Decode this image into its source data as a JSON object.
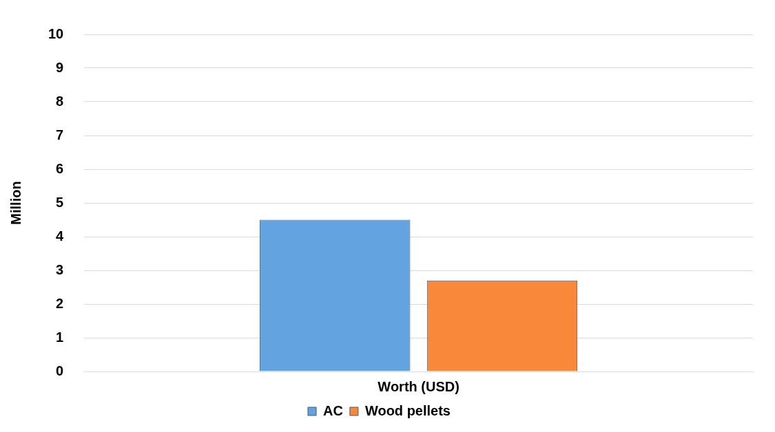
{
  "chart_data": {
    "type": "bar",
    "ylabel": "Million",
    "categories": [
      "Worth (USD)"
    ],
    "series": [
      {
        "name": "AC",
        "color": "#63a3e0",
        "values": [
          4.5
        ]
      },
      {
        "name": "Wood pellets",
        "color": "#f9883a",
        "values": [
          2.7
        ]
      }
    ],
    "ylim": [
      0,
      10
    ],
    "yticks": [
      0,
      1,
      2,
      3,
      4,
      5,
      6,
      7,
      8,
      9,
      10
    ],
    "grid": "y",
    "legend": "bottom"
  }
}
